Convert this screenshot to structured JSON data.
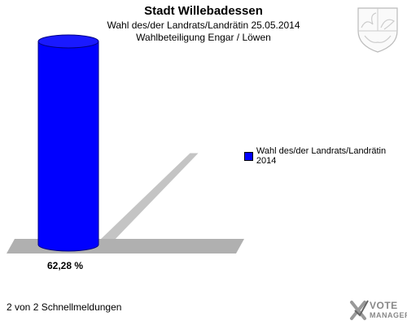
{
  "header": {
    "title": "Stadt Willebadessen",
    "subtitle_1": "Wahl des/der Landrats/Landrätin 25.05.2014",
    "subtitle_2": "Wahlbeteiligung Engar / Löwen"
  },
  "footer": {
    "text": "2 von 2 Schnellmeldungen"
  },
  "branding": {
    "logo_line1": "VOTE",
    "logo_line2": "MANAGER"
  },
  "colors": {
    "bar": "#0000ff",
    "shadow": "#b0b0b0"
  },
  "chart_data": {
    "type": "bar",
    "categories": [
      ""
    ],
    "series": [
      {
        "name": "Wahl des/der Landrats/Landrätin 2014",
        "values": [
          62.28
        ]
      }
    ],
    "data_labels": [
      "62,28 %"
    ],
    "ylim": [
      0,
      70
    ],
    "grid": false,
    "legend_position": "right"
  }
}
